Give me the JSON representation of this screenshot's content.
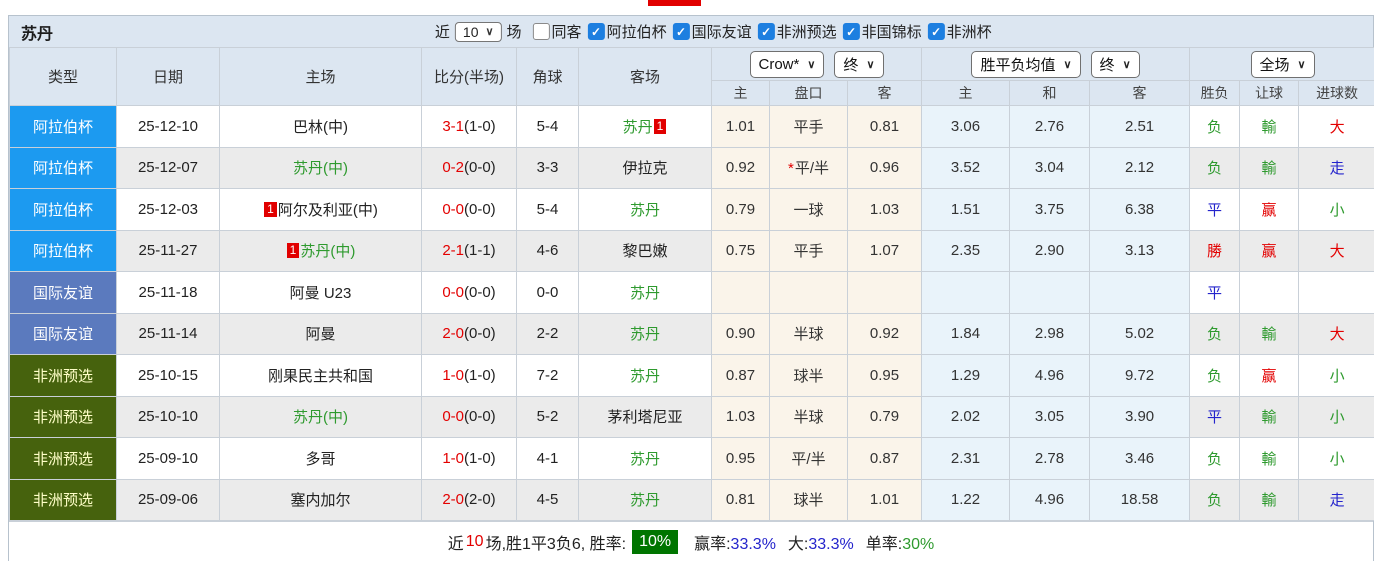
{
  "page": {
    "team_title": "苏丹",
    "top_indicator_color": "#E10000"
  },
  "filters": {
    "recent_label": "近",
    "recent_value": "10",
    "games_label": "场",
    "checkboxes": [
      {
        "label": "同客",
        "checked": false
      },
      {
        "label": "阿拉伯杯",
        "checked": true
      },
      {
        "label": "国际友谊",
        "checked": true
      },
      {
        "label": "非洲预选",
        "checked": true
      },
      {
        "label": "非国锦标",
        "checked": true
      },
      {
        "label": "非洲杯",
        "checked": true
      }
    ]
  },
  "table": {
    "columns": [
      "类型",
      "日期",
      "主场",
      "比分(半场)",
      "角球",
      "客场"
    ],
    "group_dropdowns": {
      "odds_company": "Crow*",
      "odds_time": "终",
      "avg_label": "胜平负均值",
      "avg_time": "终",
      "full_match": "全场"
    },
    "sub_columns": [
      "主",
      "盘口",
      "客",
      "主",
      "和",
      "客",
      "胜负",
      "让球",
      "进球数"
    ],
    "league_styles": {
      "arab": {
        "bg": "#1C9AF0",
        "fg": "#FFFFFF"
      },
      "friendly": {
        "bg": "#5B7ABE",
        "fg": "#FFFFFF"
      },
      "africa": {
        "bg": "#46620D",
        "fg": "#FFFFC8"
      }
    },
    "status_colors": {
      "red": "#E30000",
      "green": "#2E9A2E",
      "blue": "#2424CC"
    },
    "rows": [
      {
        "type": "阿拉伯杯",
        "league_class": "arab",
        "date": "25-12-10",
        "home_badge": "",
        "home": "巴林(中)",
        "home_color": "black",
        "score": "3-1",
        "half": "(1-0)",
        "corner": "5-4",
        "away": "苏丹",
        "away_color": "green",
        "away_badge": "1",
        "o_home": "1.01",
        "o_star": "",
        "o_hcap": "平手",
        "o_away": "0.81",
        "a_home": "3.06",
        "a_draw": "2.76",
        "a_away": "2.51",
        "r_wl": "负",
        "r_wl_color": "green",
        "r_hc": "輸",
        "r_hc_color": "green",
        "r_goal": "大",
        "r_goal_color": "red"
      },
      {
        "type": "阿拉伯杯",
        "league_class": "arab",
        "date": "25-12-07",
        "home_badge": "",
        "home": "苏丹(中)",
        "home_color": "green",
        "score": "0-2",
        "half": "(0-0)",
        "corner": "3-3",
        "away": "伊拉克",
        "away_color": "black",
        "away_badge": "",
        "o_home": "0.92",
        "o_star": "*",
        "o_hcap": "平/半",
        "o_away": "0.96",
        "a_home": "3.52",
        "a_draw": "3.04",
        "a_away": "2.12",
        "r_wl": "负",
        "r_wl_color": "green",
        "r_hc": "輸",
        "r_hc_color": "green",
        "r_goal": "走",
        "r_goal_color": "blue"
      },
      {
        "type": "阿拉伯杯",
        "league_class": "arab",
        "date": "25-12-03",
        "home_badge": "1",
        "home": "阿尔及利亚(中)",
        "home_color": "black",
        "score": "0-0",
        "half": "(0-0)",
        "corner": "5-4",
        "away": "苏丹",
        "away_color": "green",
        "away_badge": "",
        "o_home": "0.79",
        "o_star": "",
        "o_hcap": "一球",
        "o_away": "1.03",
        "a_home": "1.51",
        "a_draw": "3.75",
        "a_away": "6.38",
        "r_wl": "平",
        "r_wl_color": "blue",
        "r_hc": "赢",
        "r_hc_color": "red",
        "r_goal": "小",
        "r_goal_color": "green"
      },
      {
        "type": "阿拉伯杯",
        "league_class": "arab",
        "date": "25-11-27",
        "home_badge": "1",
        "home": "苏丹(中)",
        "home_color": "green",
        "score": "2-1",
        "half": "(1-1)",
        "corner": "4-6",
        "away": "黎巴嫩",
        "away_color": "black",
        "away_badge": "",
        "o_home": "0.75",
        "o_star": "",
        "o_hcap": "平手",
        "o_away": "1.07",
        "a_home": "2.35",
        "a_draw": "2.90",
        "a_away": "3.13",
        "r_wl": "勝",
        "r_wl_color": "red",
        "r_hc": "赢",
        "r_hc_color": "red",
        "r_goal": "大",
        "r_goal_color": "red"
      },
      {
        "type": "国际友谊",
        "league_class": "friendly",
        "date": "25-11-18",
        "home_badge": "",
        "home": "阿曼 U23",
        "home_color": "black",
        "score": "0-0",
        "half": "(0-0)",
        "corner": "0-0",
        "away": "苏丹",
        "away_color": "green",
        "away_badge": "",
        "o_home": "",
        "o_star": "",
        "o_hcap": "",
        "o_away": "",
        "a_home": "",
        "a_draw": "",
        "a_away": "",
        "r_wl": "平",
        "r_wl_color": "blue",
        "r_hc": "",
        "r_hc_color": "none",
        "r_goal": "",
        "r_goal_color": "none"
      },
      {
        "type": "国际友谊",
        "league_class": "friendly",
        "date": "25-11-14",
        "home_badge": "",
        "home": "阿曼",
        "home_color": "black",
        "score": "2-0",
        "half": "(0-0)",
        "corner": "2-2",
        "away": "苏丹",
        "away_color": "green",
        "away_badge": "",
        "o_home": "0.90",
        "o_star": "",
        "o_hcap": "半球",
        "o_away": "0.92",
        "a_home": "1.84",
        "a_draw": "2.98",
        "a_away": "5.02",
        "r_wl": "负",
        "r_wl_color": "green",
        "r_hc": "輸",
        "r_hc_color": "green",
        "r_goal": "大",
        "r_goal_color": "red"
      },
      {
        "type": "非洲预选",
        "league_class": "africa",
        "date": "25-10-15",
        "home_badge": "",
        "home": "刚果民主共和国",
        "home_color": "black",
        "score": "1-0",
        "half": "(1-0)",
        "corner": "7-2",
        "away": "苏丹",
        "away_color": "green",
        "away_badge": "",
        "o_home": "0.87",
        "o_star": "",
        "o_hcap": "球半",
        "o_away": "0.95",
        "a_home": "1.29",
        "a_draw": "4.96",
        "a_away": "9.72",
        "r_wl": "负",
        "r_wl_color": "green",
        "r_hc": "赢",
        "r_hc_color": "red",
        "r_goal": "小",
        "r_goal_color": "green"
      },
      {
        "type": "非洲预选",
        "league_class": "africa",
        "date": "25-10-10",
        "home_badge": "",
        "home": "苏丹(中)",
        "home_color": "green",
        "score": "0-0",
        "half": "(0-0)",
        "corner": "5-2",
        "away": "茅利塔尼亚",
        "away_color": "black",
        "away_badge": "",
        "o_home": "1.03",
        "o_star": "",
        "o_hcap": "半球",
        "o_away": "0.79",
        "a_home": "2.02",
        "a_draw": "3.05",
        "a_away": "3.90",
        "r_wl": "平",
        "r_wl_color": "blue",
        "r_hc": "輸",
        "r_hc_color": "green",
        "r_goal": "小",
        "r_goal_color": "green"
      },
      {
        "type": "非洲预选",
        "league_class": "africa",
        "date": "25-09-10",
        "home_badge": "",
        "home": "多哥",
        "home_color": "black",
        "score": "1-0",
        "half": "(1-0)",
        "corner": "4-1",
        "away": "苏丹",
        "away_color": "green",
        "away_badge": "",
        "o_home": "0.95",
        "o_star": "",
        "o_hcap": "平/半",
        "o_away": "0.87",
        "a_home": "2.31",
        "a_draw": "2.78",
        "a_away": "3.46",
        "r_wl": "负",
        "r_wl_color": "green",
        "r_hc": "輸",
        "r_hc_color": "green",
        "r_goal": "小",
        "r_goal_color": "green"
      },
      {
        "type": "非洲预选",
        "league_class": "africa",
        "date": "25-09-06",
        "home_badge": "",
        "home": "塞内加尔",
        "home_color": "black",
        "score": "2-0",
        "half": "(2-0)",
        "corner": "4-5",
        "away": "苏丹",
        "away_color": "green",
        "away_badge": "",
        "o_home": "0.81",
        "o_star": "",
        "o_hcap": "球半",
        "o_away": "1.01",
        "a_home": "1.22",
        "a_draw": "4.96",
        "a_away": "18.58",
        "r_wl": "负",
        "r_wl_color": "green",
        "r_hc": "輸",
        "r_hc_color": "green",
        "r_goal": "走",
        "r_goal_color": "blue"
      }
    ]
  },
  "footer": {
    "prefix": "近",
    "count": "10",
    "summary": "场,胜1平3负6, 胜率:",
    "win_rate": "10%",
    "win_rate_bg": "#007500",
    "segments": [
      {
        "label": "赢率:",
        "value": "33.3%",
        "color": "blue"
      },
      {
        "label": "大:",
        "value": "33.3%",
        "color": "blue"
      },
      {
        "label": "单率:",
        "value": "30%",
        "color": "green"
      }
    ]
  }
}
